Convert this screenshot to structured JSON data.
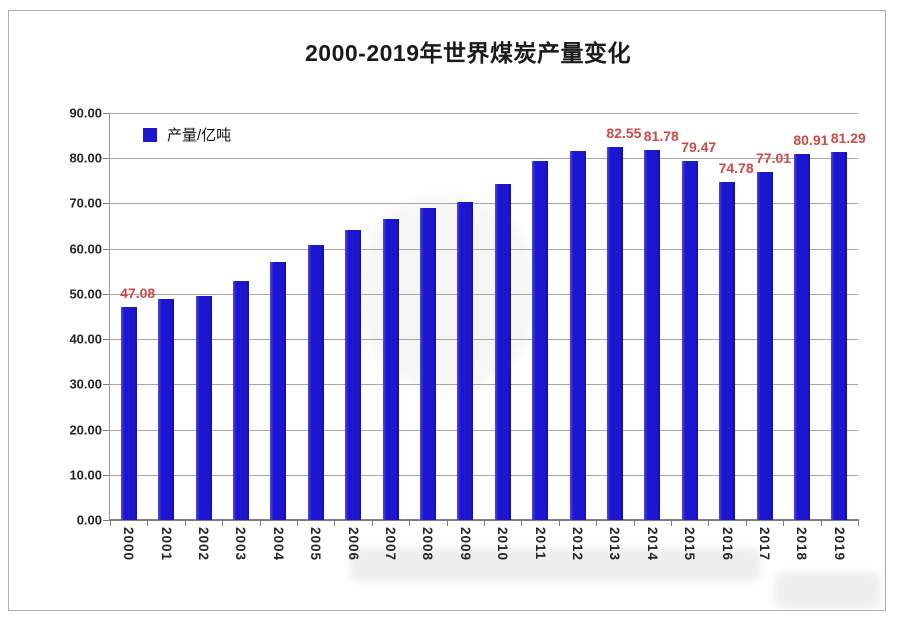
{
  "window": {
    "background_color": "#ffffff",
    "frame_border_color": "#aeaeae"
  },
  "chart_data": {
    "type": "bar",
    "title": "2000-2019年世界煤炭产量变化",
    "legend": {
      "position": "top-left-inside",
      "entries": [
        {
          "label": "产量/亿吨",
          "color": "#1c17cf"
        }
      ]
    },
    "categories": [
      "2000",
      "2001",
      "2002",
      "2003",
      "2004",
      "2005",
      "2006",
      "2007",
      "2008",
      "2009",
      "2010",
      "2011",
      "2012",
      "2013",
      "2014",
      "2015",
      "2016",
      "2017",
      "2018",
      "2019"
    ],
    "series": [
      {
        "name": "产量/亿吨",
        "values": [
          47.08,
          48.9,
          49.6,
          52.9,
          57.0,
          60.8,
          64.1,
          66.5,
          69.0,
          70.3,
          74.4,
          79.3,
          81.7,
          82.55,
          81.78,
          79.47,
          74.78,
          77.01,
          80.91,
          81.29
        ]
      }
    ],
    "data_labels": [
      "47.08",
      null,
      null,
      null,
      null,
      null,
      null,
      null,
      null,
      null,
      null,
      null,
      null,
      "82.55",
      "81.78",
      "79.47",
      "74.78",
      "77.01",
      "80.91",
      "81.29"
    ],
    "xlabel": "",
    "ylabel": "",
    "ylim": [
      0,
      90
    ],
    "ytick_step": 10,
    "ytick_labels": [
      "0.00",
      "10.00",
      "20.00",
      "30.00",
      "40.00",
      "50.00",
      "60.00",
      "70.00",
      "80.00",
      "90.00"
    ],
    "grid": true,
    "x_label_rotation_deg": 90,
    "bar_color": "#1c17cf",
    "data_label_color": "#cb4a47",
    "gridline_color": "#a6a6a6",
    "axis_text_color": "#262626"
  }
}
